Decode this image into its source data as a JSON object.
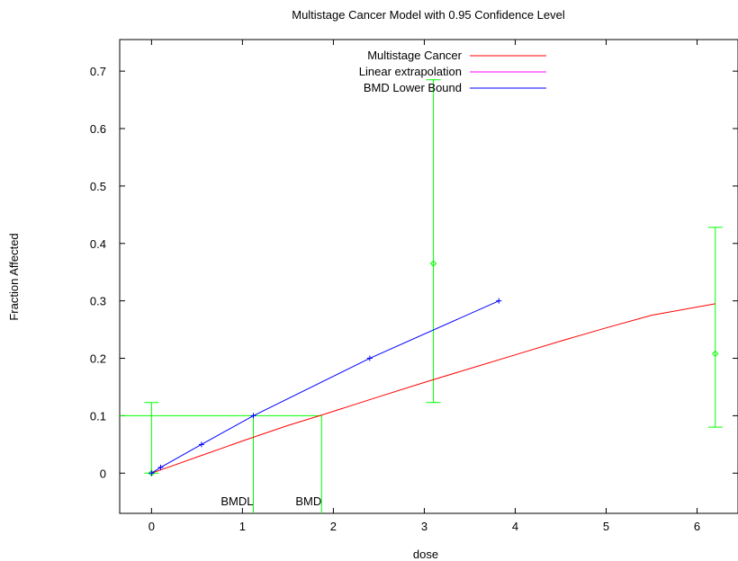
{
  "chart_data": {
    "type": "line",
    "title": "Multistage Cancer Model with 0.95 Confidence Level",
    "xlabel": "dose",
    "ylabel": "Fraction Affected",
    "xlim": [
      -0.35,
      6.45
    ],
    "ylim": [
      -0.07,
      0.755
    ],
    "xticks": [
      0,
      1,
      2,
      3,
      4,
      5,
      6
    ],
    "yticks": [
      0,
      0.1,
      0.2,
      0.3,
      0.4,
      0.5,
      0.6,
      0.7
    ],
    "grid": false,
    "legend_position": "top-center",
    "legend": [
      {
        "name": "Multistage Cancer",
        "color": "#ff0000"
      },
      {
        "name": "Linear extrapolation",
        "color": "#ff00ff"
      },
      {
        "name": "BMD Lower Bound",
        "color": "#0000ff"
      }
    ],
    "series": [
      {
        "name": "Multistage Cancer",
        "color": "#ff0000",
        "x": [
          0,
          0.5,
          1.0,
          1.5,
          1.85,
          2.5,
          3.0,
          3.5,
          4.0,
          4.5,
          5.0,
          5.5,
          6.2
        ],
        "values": [
          0,
          0.028,
          0.056,
          0.083,
          0.1,
          0.133,
          0.158,
          0.182,
          0.206,
          0.23,
          0.253,
          0.275,
          0.295
        ]
      },
      {
        "name": "BMD Lower Bound",
        "color": "#0000ff",
        "x": [
          0,
          0.1,
          0.55,
          1.12,
          2.4,
          3.82
        ],
        "values": [
          0,
          0.01,
          0.05,
          0.1,
          0.2,
          0.3
        ],
        "markers": true
      }
    ],
    "data_points": {
      "color": "#00ff00",
      "x": [
        0,
        3.1,
        6.2
      ],
      "values": [
        0,
        0.365,
        0.208
      ],
      "lower": [
        0,
        0.123,
        0.08
      ],
      "upper": [
        0.123,
        0.685,
        0.428
      ]
    },
    "bmr_level": 0.1,
    "bmd": 1.87,
    "bmdl": 1.12,
    "annotations": [
      {
        "text": "BMDL",
        "x": 1.12
      },
      {
        "text": "BMD",
        "x": 1.87
      }
    ]
  }
}
